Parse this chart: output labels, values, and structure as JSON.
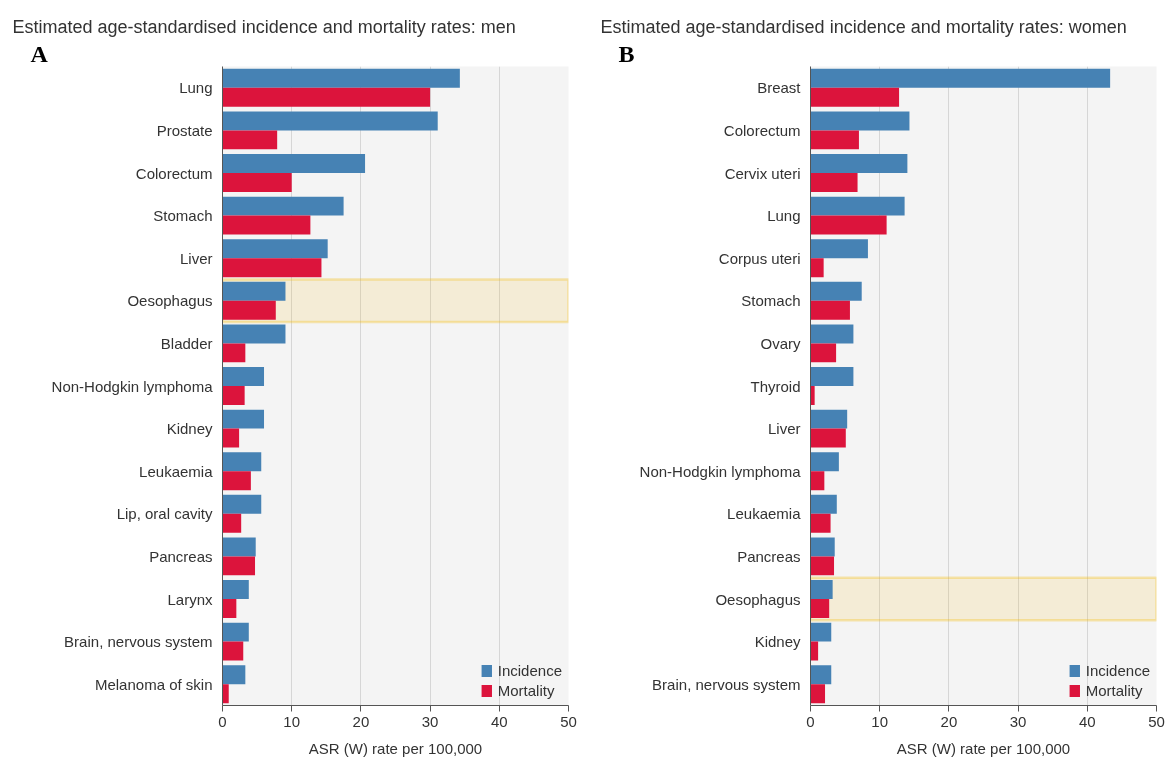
{
  "chart_data": [
    {
      "type": "bar",
      "orientation": "horizontal",
      "title": "Estimated age-standardised incidence and mortality rates: men",
      "xlabel": "ASR (W) rate per 100,000",
      "annotations": [
        "A"
      ],
      "categories": [
        "Lung",
        "Prostate",
        "Colorectum",
        "Stomach",
        "Liver",
        "Oesophagus",
        "Bladder",
        "Non-Hodgkin lymphoma",
        "Kidney",
        "Leukaemia",
        "Lip, oral cavity",
        "Pancreas",
        "Larynx",
        "Brain, nervous system",
        "Melanoma of skin"
      ],
      "series": [
        {
          "name": "Incidence",
          "color": "#4682b4",
          "values": [
            34.3,
            31.1,
            20.6,
            17.5,
            15.2,
            9.1,
            9.1,
            6.0,
            6.0,
            5.6,
            5.6,
            4.8,
            3.8,
            3.8,
            3.3
          ]
        },
        {
          "name": "Mortality",
          "color": "#dc143c",
          "values": [
            30.0,
            7.9,
            10.0,
            12.7,
            14.3,
            7.7,
            3.3,
            3.2,
            2.4,
            4.1,
            2.7,
            4.7,
            2.0,
            3.0,
            0.9
          ]
        }
      ],
      "xlim": [
        0,
        50
      ],
      "xticks": [
        0,
        10,
        20,
        30,
        40,
        50
      ],
      "grid": "x",
      "legend": "bottom right",
      "bands": [
        {
          "axis": "y",
          "from": "Oesophagus",
          "to": "Oesophagus",
          "color": "#f5b800"
        }
      ]
    },
    {
      "type": "bar",
      "orientation": "horizontal",
      "title": "Estimated age-standardised incidence and mortality rates: women",
      "xlabel": "ASR (W) rate per 100,000",
      "annotations": [
        "B"
      ],
      "categories": [
        "Breast",
        "Colorectum",
        "Cervix uteri",
        "Lung",
        "Corpus uteri",
        "Stomach",
        "Ovary",
        "Thyroid",
        "Liver",
        "Non-Hodgkin lymphoma",
        "Leukaemia",
        "Pancreas",
        "Oesophagus",
        "Kidney",
        "Brain, nervous system"
      ],
      "series": [
        {
          "name": "Incidence",
          "color": "#4682b4",
          "values": [
            43.3,
            14.3,
            14.0,
            13.6,
            8.3,
            7.4,
            6.2,
            6.2,
            5.3,
            4.1,
            3.8,
            3.5,
            3.2,
            3.0,
            3.0
          ]
        },
        {
          "name": "Mortality",
          "color": "#dc143c",
          "values": [
            12.8,
            7.0,
            6.8,
            11.0,
            1.9,
            5.7,
            3.7,
            0.6,
            5.1,
            2.0,
            2.9,
            3.4,
            2.7,
            1.1,
            2.1
          ]
        }
      ],
      "xlim": [
        0,
        50
      ],
      "xticks": [
        0,
        10,
        20,
        30,
        40,
        50
      ],
      "grid": "x",
      "legend": "bottom right",
      "bands": [
        {
          "axis": "y",
          "from": "Oesophagus",
          "to": "Oesophagus",
          "color": "#f5b800"
        }
      ]
    }
  ]
}
